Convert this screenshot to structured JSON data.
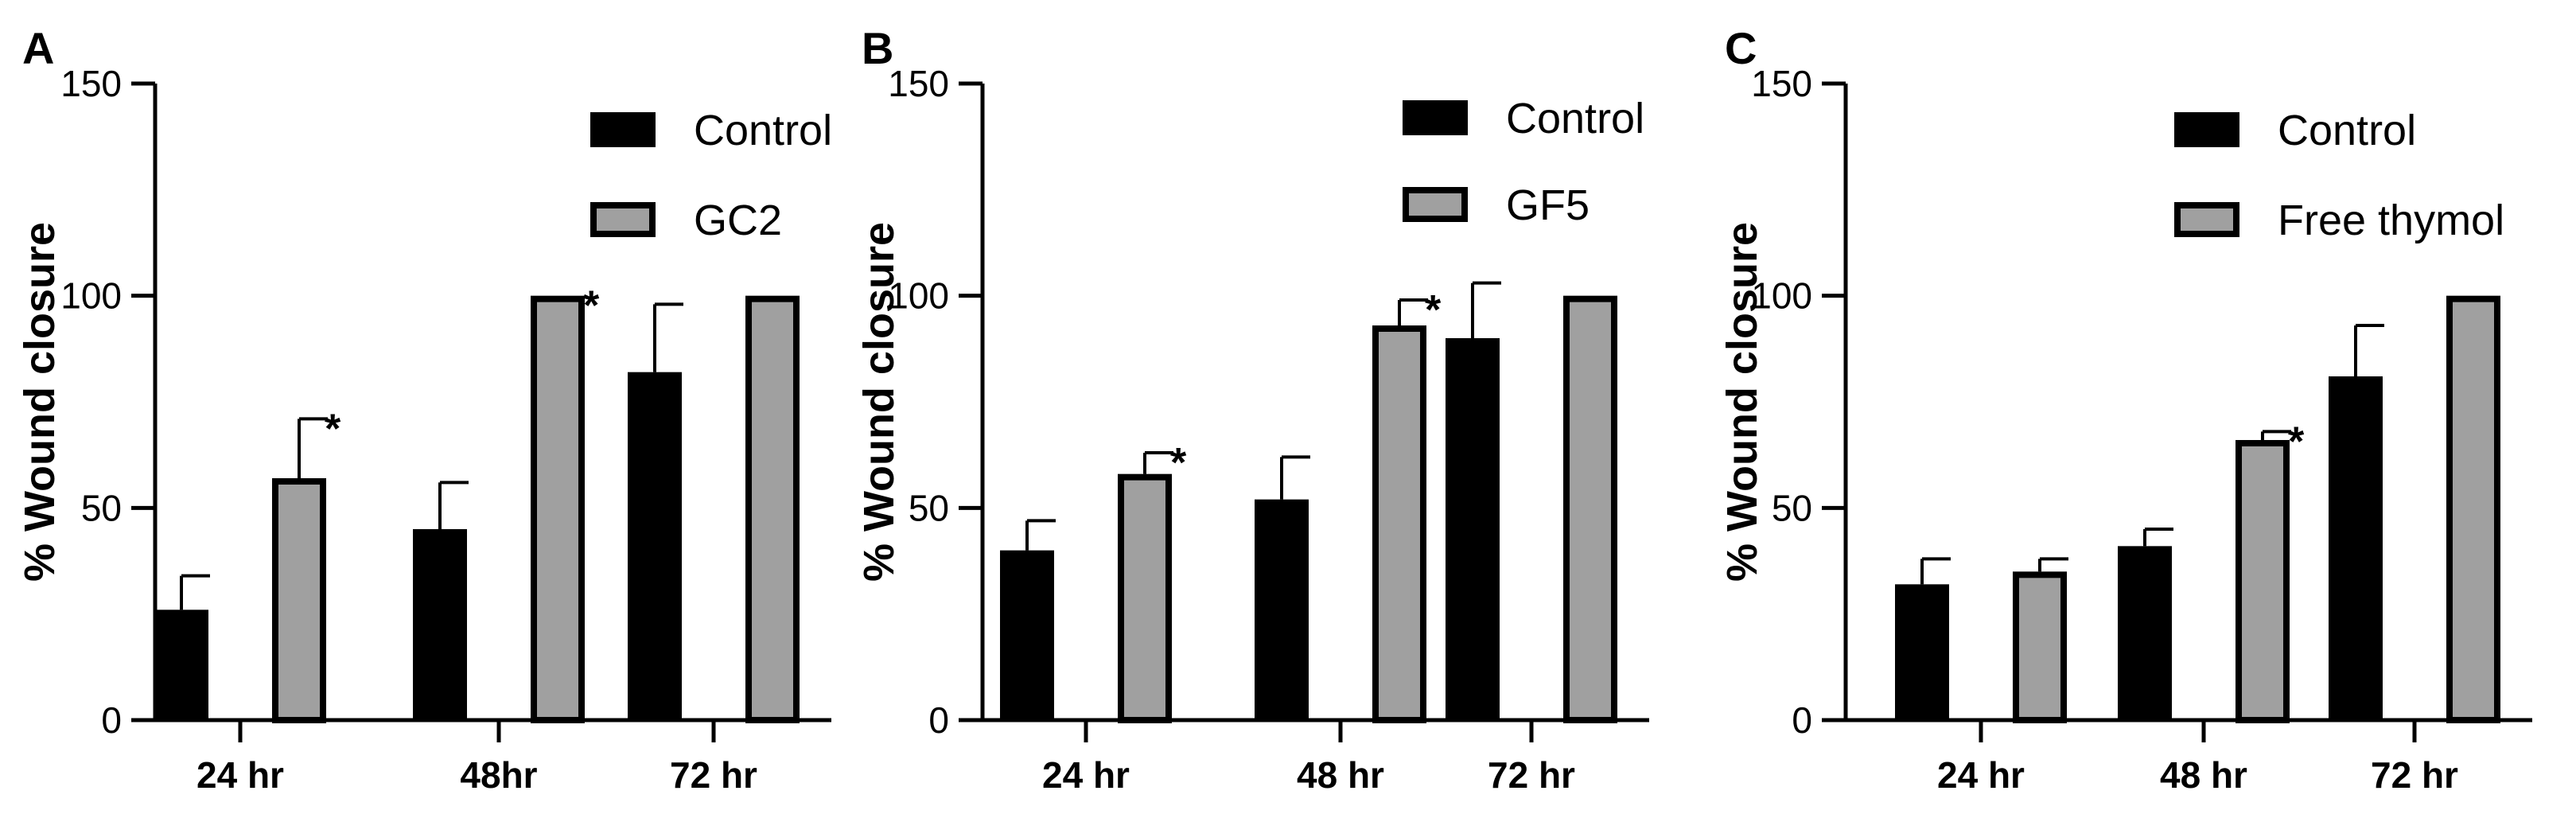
{
  "chart_data": [
    {
      "type": "bar",
      "panel": "A",
      "ylabel": "% Wound closure",
      "ylim": [
        0,
        150
      ],
      "yticks": [
        "0",
        "50",
        "100",
        "150"
      ],
      "categories": [
        "24 hr",
        "48hr",
        "72 hr"
      ],
      "series": [
        {
          "name": "Control",
          "color": "#000000",
          "values": [
            26,
            45,
            82
          ],
          "errors": [
            8,
            11,
            16
          ]
        },
        {
          "name": "GC2",
          "color": "#a0a0a0",
          "values": [
            57,
            100,
            100
          ],
          "errors": [
            14,
            0,
            0
          ]
        }
      ],
      "annotations": [
        {
          "text": "*",
          "category": 0,
          "series": 1
        },
        {
          "text": "*",
          "category": 1,
          "series": 1
        }
      ]
    },
    {
      "type": "bar",
      "panel": "B",
      "ylabel": "% Wound closure",
      "ylim": [
        0,
        150
      ],
      "yticks": [
        "0",
        "50",
        "100",
        "150"
      ],
      "categories": [
        "24 hr",
        "48 hr",
        "72 hr"
      ],
      "series": [
        {
          "name": "Control",
          "color": "#000000",
          "values": [
            40,
            52,
            90
          ],
          "errors": [
            7,
            10,
            13
          ]
        },
        {
          "name": "GF5",
          "color": "#a0a0a0",
          "values": [
            58,
            93,
            100
          ],
          "errors": [
            5,
            6,
            0
          ]
        }
      ],
      "annotations": [
        {
          "text": "*",
          "category": 0,
          "series": 1
        },
        {
          "text": "*",
          "category": 1,
          "series": 1
        }
      ]
    },
    {
      "type": "bar",
      "panel": "C",
      "ylabel": "% Wound closure",
      "ylim": [
        0,
        150
      ],
      "yticks": [
        "0",
        "50",
        "100",
        "150"
      ],
      "categories": [
        "24 hr",
        "48 hr",
        "72 hr"
      ],
      "series": [
        {
          "name": "Control",
          "color": "#000000",
          "values": [
            32,
            41,
            81
          ],
          "errors": [
            6,
            4,
            12
          ]
        },
        {
          "name": "Free thymol",
          "color": "#a0a0a0",
          "values": [
            35,
            66,
            100
          ],
          "errors": [
            3,
            2,
            0
          ]
        }
      ],
      "annotations": [
        {
          "text": "*",
          "category": 1,
          "series": 1
        }
      ]
    }
  ]
}
